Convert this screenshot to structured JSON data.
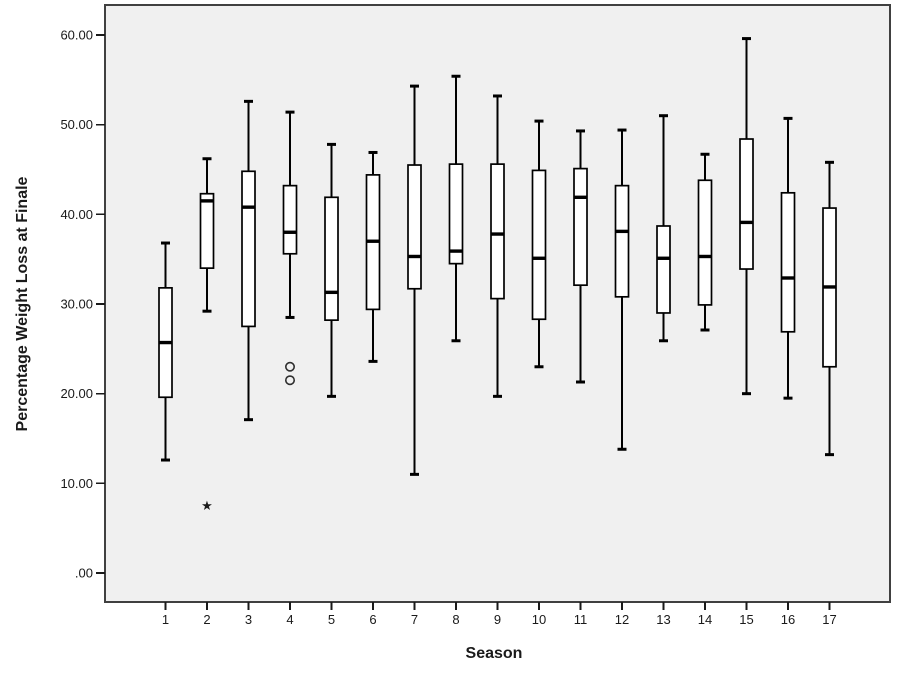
{
  "figure": {
    "background": "#ffffff",
    "plot_background": "#f0f0f0",
    "frame_color": "#404040",
    "box_fill": "#ffffff",
    "line_color": "#000000",
    "outlier_stroke": "#2e2e2e"
  },
  "yaxis": {
    "title": "Percentage Weight Loss at Finale",
    "ticks": [
      {
        "label": ".00",
        "value": 0
      },
      {
        "label": "10.00",
        "value": 10
      },
      {
        "label": "20.00",
        "value": 20
      },
      {
        "label": "30.00",
        "value": 30
      },
      {
        "label": "40.00",
        "value": 40
      },
      {
        "label": "50.00",
        "value": 50
      },
      {
        "label": "60.00",
        "value": 60
      }
    ]
  },
  "xaxis": {
    "title": "Season",
    "ticks": [
      "1",
      "2",
      "3",
      "4",
      "5",
      "6",
      "7",
      "8",
      "9",
      "10",
      "11",
      "12",
      "13",
      "14",
      "15",
      "16",
      "17"
    ]
  },
  "chart_data": {
    "type": "boxplot",
    "title": "",
    "xlabel": "Season",
    "ylabel": "Percentage Weight Loss at Finale",
    "ylim": [
      0,
      60
    ],
    "grid": false,
    "legend": false,
    "categories": [
      "1",
      "2",
      "3",
      "4",
      "5",
      "6",
      "7",
      "8",
      "9",
      "10",
      "11",
      "12",
      "13",
      "14",
      "15",
      "16",
      "17"
    ],
    "outlier_marker": "circle",
    "extreme_marker": "star",
    "series": [
      {
        "season": "1",
        "min": 12.6,
        "q1": 19.6,
        "median": 25.7,
        "q3": 31.8,
        "max": 36.8,
        "outliers": [],
        "extremes": []
      },
      {
        "season": "2",
        "min": 29.2,
        "q1": 34.0,
        "median": 41.5,
        "q3": 42.3,
        "max": 46.2,
        "outliers": [],
        "extremes": [
          7.5
        ]
      },
      {
        "season": "3",
        "min": 17.1,
        "q1": 27.5,
        "median": 40.8,
        "q3": 44.8,
        "max": 52.6,
        "outliers": [],
        "extremes": []
      },
      {
        "season": "4",
        "min": 28.5,
        "q1": 35.6,
        "median": 38.0,
        "q3": 43.2,
        "max": 51.4,
        "outliers": [
          23.0,
          21.5
        ],
        "extremes": []
      },
      {
        "season": "5",
        "min": 19.7,
        "q1": 28.2,
        "median": 31.3,
        "q3": 41.9,
        "max": 47.8,
        "outliers": [],
        "extremes": []
      },
      {
        "season": "6",
        "min": 23.6,
        "q1": 29.4,
        "median": 37.0,
        "q3": 44.4,
        "max": 46.9,
        "outliers": [],
        "extremes": []
      },
      {
        "season": "7",
        "min": 11.0,
        "q1": 31.7,
        "median": 35.3,
        "q3": 45.5,
        "max": 54.3,
        "outliers": [],
        "extremes": []
      },
      {
        "season": "8",
        "min": 25.9,
        "q1": 34.5,
        "median": 35.9,
        "q3": 45.6,
        "max": 55.4,
        "outliers": [],
        "extremes": []
      },
      {
        "season": "9",
        "min": 19.7,
        "q1": 30.6,
        "median": 37.8,
        "q3": 45.6,
        "max": 53.2,
        "outliers": [],
        "extremes": []
      },
      {
        "season": "10",
        "min": 23.0,
        "q1": 28.3,
        "median": 35.1,
        "q3": 44.9,
        "max": 50.4,
        "outliers": [],
        "extremes": []
      },
      {
        "season": "11",
        "min": 21.3,
        "q1": 32.1,
        "median": 41.9,
        "q3": 45.1,
        "max": 49.3,
        "outliers": [],
        "extremes": []
      },
      {
        "season": "12",
        "min": 13.8,
        "q1": 30.8,
        "median": 38.1,
        "q3": 43.2,
        "max": 49.4,
        "outliers": [],
        "extremes": []
      },
      {
        "season": "13",
        "min": 25.9,
        "q1": 29.0,
        "median": 35.1,
        "q3": 38.7,
        "max": 51.0,
        "outliers": [],
        "extremes": []
      },
      {
        "season": "14",
        "min": 27.1,
        "q1": 29.9,
        "median": 35.3,
        "q3": 43.8,
        "max": 46.7,
        "outliers": [],
        "extremes": []
      },
      {
        "season": "15",
        "min": 20.0,
        "q1": 33.9,
        "median": 39.1,
        "q3": 48.4,
        "max": 59.6,
        "outliers": [],
        "extremes": []
      },
      {
        "season": "16",
        "min": 19.5,
        "q1": 26.9,
        "median": 32.9,
        "q3": 42.4,
        "max": 50.7,
        "outliers": [],
        "extremes": []
      },
      {
        "season": "17",
        "min": 13.2,
        "q1": 23.0,
        "median": 31.9,
        "q3": 40.7,
        "max": 45.8,
        "outliers": [],
        "extremes": []
      }
    ]
  }
}
